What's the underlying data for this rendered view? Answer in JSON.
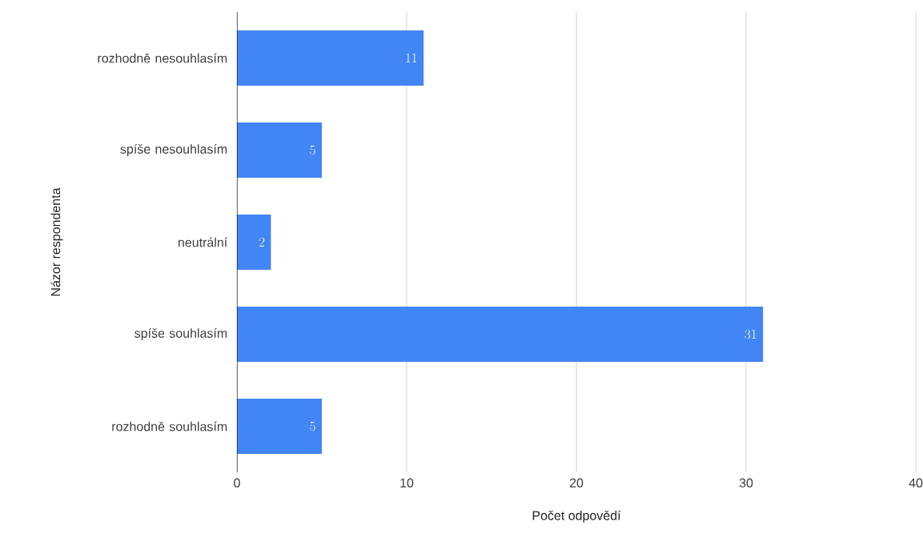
{
  "chart_data": {
    "type": "bar",
    "orientation": "horizontal",
    "xlabel": "Počet odpovědí",
    "ylabel": "Názor respondenta",
    "categories": [
      "rozhodně nesouhlasím",
      "spíše nesouhlasím",
      "neutrální",
      "spíše souhlasím",
      "rozhodně souhlasím"
    ],
    "values": [
      11,
      5,
      2,
      31,
      5
    ],
    "color": "#4285f4",
    "xlim": [
      0,
      40
    ],
    "xticks": [
      0,
      10,
      20,
      30,
      40
    ],
    "grid": "x",
    "data_labels": true
  }
}
